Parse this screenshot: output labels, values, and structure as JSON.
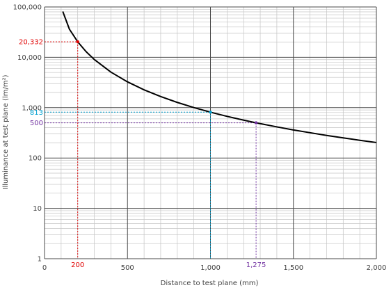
{
  "chart_data": {
    "type": "line",
    "xlabel": "Distance to test plane (mm)",
    "ylabel": "Illuminance at test plane (lm/m²)",
    "xlim": [
      0,
      2000
    ],
    "ylim": [
      1,
      100000
    ],
    "yscale": "log",
    "grid": true,
    "x_ticks": [
      {
        "value": 0,
        "label": "0"
      },
      {
        "value": 500,
        "label": "500"
      },
      {
        "value": 1000,
        "label": "1,000"
      },
      {
        "value": 1500,
        "label": "1,500"
      },
      {
        "value": 2000,
        "label": "2,000"
      }
    ],
    "y_ticks": [
      {
        "value": 1,
        "label": "1"
      },
      {
        "value": 10,
        "label": "10"
      },
      {
        "value": 100,
        "label": "100"
      },
      {
        "value": 1000,
        "label": "1,000"
      },
      {
        "value": 10000,
        "label": "10,000"
      },
      {
        "value": 100000,
        "label": "100,000"
      }
    ],
    "series": [
      {
        "color": "#000000",
        "x": [
          110,
          150,
          200,
          250,
          300,
          400,
          500,
          600,
          700,
          800,
          900,
          1000,
          1100,
          1200,
          1275,
          1400,
          1500,
          1600,
          1700,
          1800,
          1900,
          2000
        ],
        "y": [
          81300,
          36130,
          20332,
          13010,
          9035,
          5082,
          3253,
          2259,
          1660,
          1271,
          1004,
          813,
          672,
          565,
          500,
          415,
          361,
          318,
          281,
          251,
          225,
          203
        ]
      }
    ],
    "annotations": [
      {
        "x": 200,
        "y": 20332,
        "x_label": "200",
        "y_label": "20,332",
        "color": "#e00000"
      },
      {
        "x": 1000,
        "y": 813,
        "x_label": "",
        "y_label": "813",
        "color": "#00a0d0"
      },
      {
        "x": 1275,
        "y": 500,
        "x_label": "1,275",
        "y_label": "500",
        "color": "#7030a0"
      }
    ]
  }
}
